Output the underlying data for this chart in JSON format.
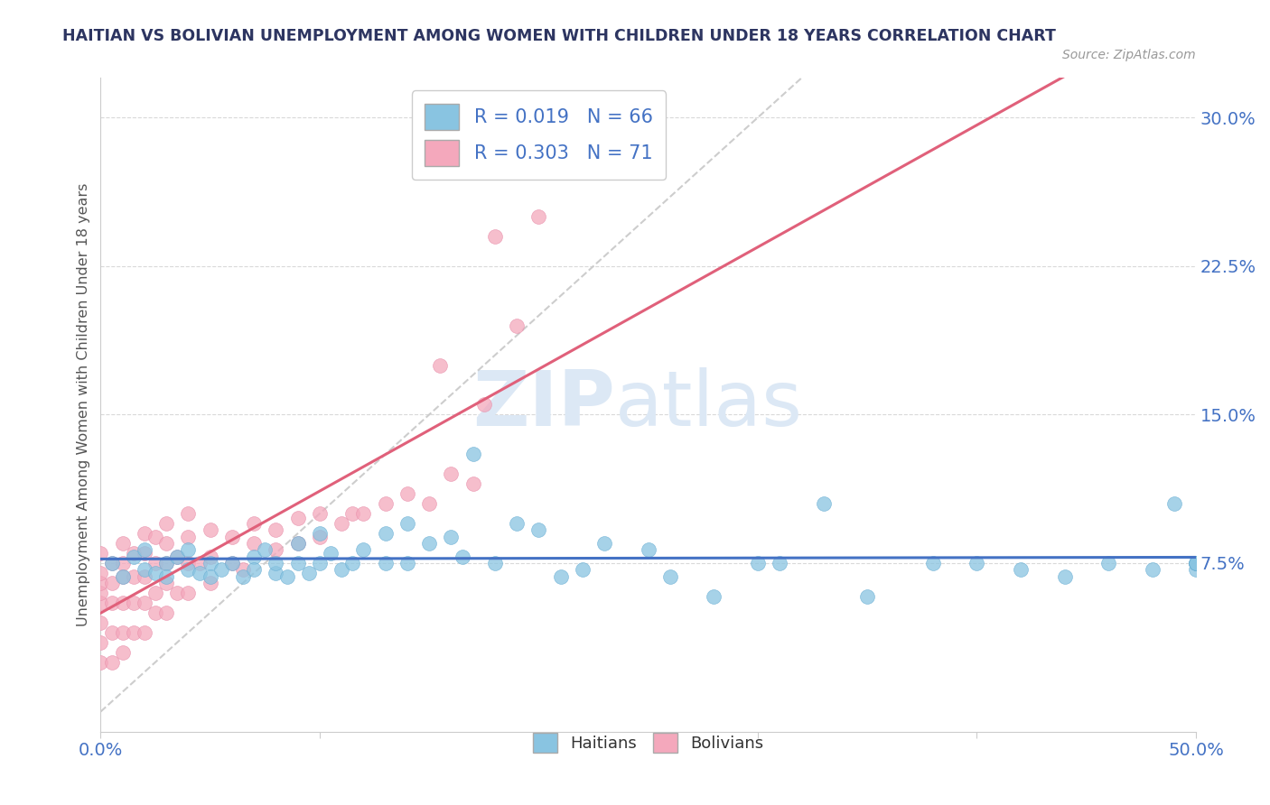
{
  "title": "HAITIAN VS BOLIVIAN UNEMPLOYMENT AMONG WOMEN WITH CHILDREN UNDER 18 YEARS CORRELATION CHART",
  "source": "Source: ZipAtlas.com",
  "ylabel": "Unemployment Among Women with Children Under 18 years",
  "xlim": [
    0.0,
    0.5
  ],
  "ylim": [
    -0.01,
    0.32
  ],
  "xticks": [
    0.0,
    0.1,
    0.2,
    0.3,
    0.4,
    0.5
  ],
  "xticklabels": [
    "0.0%",
    "",
    "",
    "",
    "",
    "50.0%"
  ],
  "yticks": [
    0.075,
    0.15,
    0.225,
    0.3
  ],
  "yticklabels": [
    "7.5%",
    "15.0%",
    "22.5%",
    "30.0%"
  ],
  "haitian_color": "#89c4e1",
  "bolivian_color": "#f4a8bc",
  "haitian_edge": "#6aafd4",
  "bolivian_edge": "#e88faa",
  "haitian_line_color": "#4472c4",
  "bolivian_line_color": "#e0607a",
  "diag_line_color": "#c8c8c8",
  "title_color": "#2d3561",
  "axis_tick_color": "#4472c4",
  "legend_label_color": "#333333",
  "watermark_color": "#dce8f5",
  "background_color": "#ffffff",
  "haitians_x": [
    0.005,
    0.01,
    0.015,
    0.02,
    0.02,
    0.025,
    0.03,
    0.03,
    0.035,
    0.04,
    0.04,
    0.045,
    0.05,
    0.05,
    0.055,
    0.06,
    0.065,
    0.07,
    0.07,
    0.075,
    0.08,
    0.08,
    0.085,
    0.09,
    0.09,
    0.095,
    0.1,
    0.1,
    0.105,
    0.11,
    0.115,
    0.12,
    0.13,
    0.13,
    0.14,
    0.14,
    0.15,
    0.16,
    0.165,
    0.17,
    0.18,
    0.19,
    0.2,
    0.21,
    0.22,
    0.23,
    0.25,
    0.26,
    0.28,
    0.3,
    0.31,
    0.33,
    0.35,
    0.38,
    0.4,
    0.42,
    0.44,
    0.46,
    0.48,
    0.49,
    0.5,
    0.5,
    0.5,
    0.5,
    0.5,
    0.5
  ],
  "haitians_y": [
    0.075,
    0.068,
    0.078,
    0.072,
    0.082,
    0.07,
    0.075,
    0.068,
    0.078,
    0.072,
    0.082,
    0.07,
    0.075,
    0.068,
    0.072,
    0.075,
    0.068,
    0.078,
    0.072,
    0.082,
    0.07,
    0.075,
    0.068,
    0.075,
    0.085,
    0.07,
    0.075,
    0.09,
    0.08,
    0.072,
    0.075,
    0.082,
    0.09,
    0.075,
    0.095,
    0.075,
    0.085,
    0.088,
    0.078,
    0.13,
    0.075,
    0.095,
    0.092,
    0.068,
    0.072,
    0.085,
    0.082,
    0.068,
    0.058,
    0.075,
    0.075,
    0.105,
    0.058,
    0.075,
    0.075,
    0.072,
    0.068,
    0.075,
    0.072,
    0.105,
    0.075,
    0.072,
    0.075,
    0.075,
    0.075,
    0.075
  ],
  "bolivians_x": [
    0.0,
    0.0,
    0.0,
    0.0,
    0.0,
    0.0,
    0.0,
    0.0,
    0.005,
    0.005,
    0.005,
    0.005,
    0.005,
    0.01,
    0.01,
    0.01,
    0.01,
    0.01,
    0.01,
    0.015,
    0.015,
    0.015,
    0.015,
    0.02,
    0.02,
    0.02,
    0.02,
    0.02,
    0.025,
    0.025,
    0.025,
    0.025,
    0.03,
    0.03,
    0.03,
    0.03,
    0.03,
    0.035,
    0.035,
    0.04,
    0.04,
    0.04,
    0.04,
    0.045,
    0.05,
    0.05,
    0.05,
    0.06,
    0.06,
    0.065,
    0.07,
    0.07,
    0.08,
    0.08,
    0.09,
    0.09,
    0.1,
    0.1,
    0.11,
    0.115,
    0.12,
    0.13,
    0.14,
    0.15,
    0.155,
    0.16,
    0.17,
    0.175,
    0.18,
    0.19,
    0.2
  ],
  "bolivians_y": [
    0.025,
    0.035,
    0.045,
    0.055,
    0.06,
    0.065,
    0.07,
    0.08,
    0.025,
    0.04,
    0.055,
    0.065,
    0.075,
    0.03,
    0.04,
    0.055,
    0.068,
    0.075,
    0.085,
    0.04,
    0.055,
    0.068,
    0.08,
    0.04,
    0.055,
    0.068,
    0.08,
    0.09,
    0.05,
    0.06,
    0.075,
    0.088,
    0.05,
    0.065,
    0.075,
    0.085,
    0.095,
    0.06,
    0.078,
    0.06,
    0.075,
    0.088,
    0.1,
    0.075,
    0.065,
    0.078,
    0.092,
    0.075,
    0.088,
    0.072,
    0.085,
    0.095,
    0.082,
    0.092,
    0.085,
    0.098,
    0.088,
    0.1,
    0.095,
    0.1,
    0.1,
    0.105,
    0.11,
    0.105,
    0.175,
    0.12,
    0.115,
    0.155,
    0.24,
    0.195,
    0.25
  ]
}
